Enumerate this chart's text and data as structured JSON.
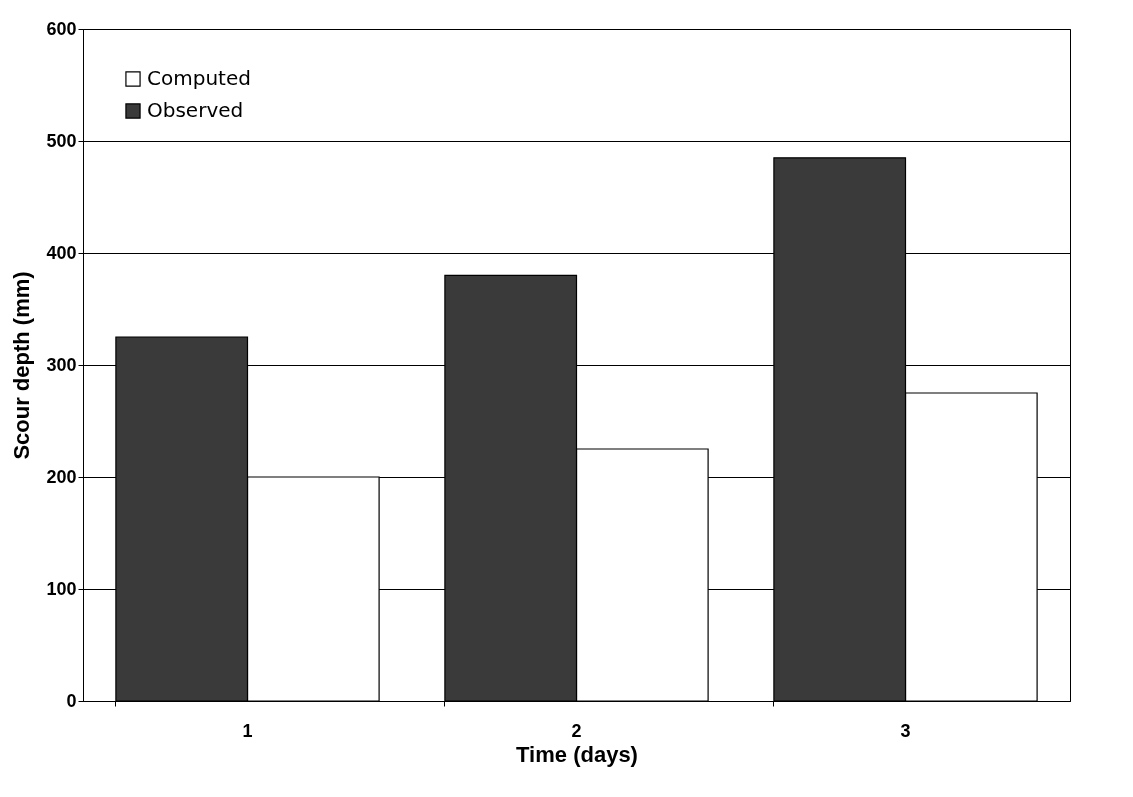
{
  "chart_data": {
    "type": "bar",
    "xlabel": "Time (days)",
    "ylabel": "Scour depth (mm)",
    "categories": [
      "1",
      "2",
      "3"
    ],
    "series": [
      {
        "name": "Computed",
        "color": "#ffffff",
        "values": [
          200,
          225,
          275
        ]
      },
      {
        "name": "Observed",
        "color": "#3a3a3a",
        "values": [
          325,
          380,
          485
        ]
      }
    ],
    "ylim": [
      0,
      600
    ],
    "yticks": [
      0,
      100,
      200,
      300,
      400,
      500,
      600
    ],
    "grid": "y",
    "legend": "top left"
  }
}
